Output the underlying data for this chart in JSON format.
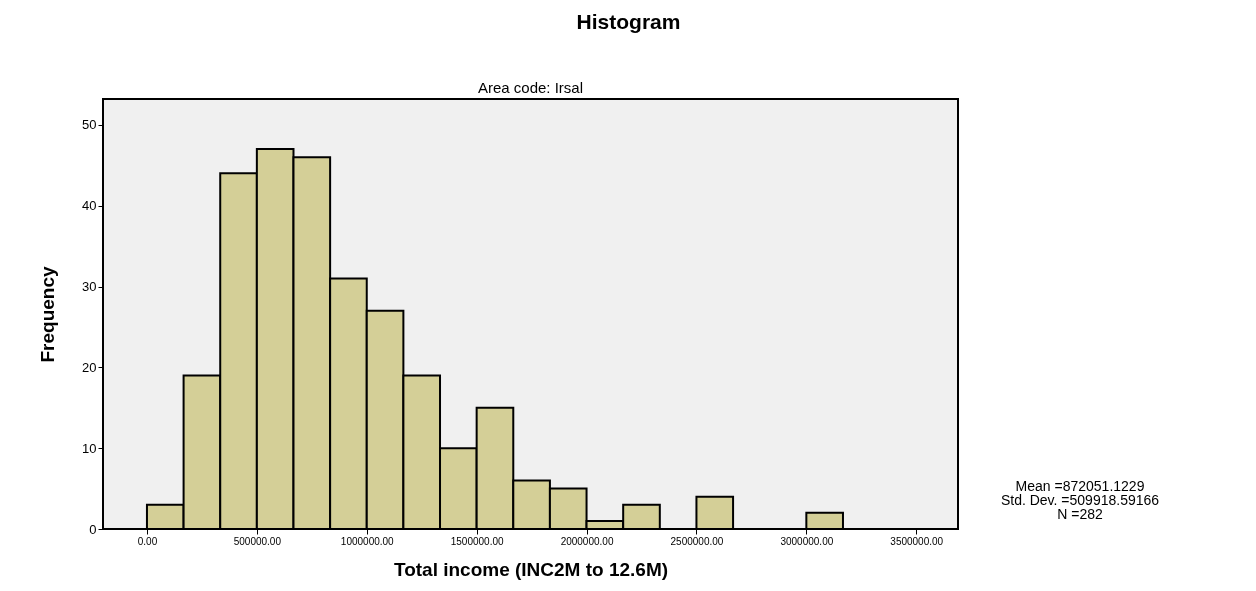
{
  "chart_data": {
    "type": "histogram",
    "title": "Histogram",
    "subtitle": "Area code: Irsal",
    "xlabel": "Total income (INC2M to 12.6M)",
    "ylabel": "Frequency",
    "bins": [
      0,
      166667,
      333333,
      500000,
      666667,
      833333,
      1000000,
      1166667,
      1333333,
      1500000,
      1666667,
      1833333,
      2000000,
      2166667,
      2333333,
      2500000,
      2666667,
      2833333,
      3000000,
      3166667
    ],
    "values": [
      3,
      19,
      44,
      47,
      46,
      31,
      27,
      19,
      10,
      15,
      6,
      5,
      1,
      3,
      0,
      4,
      0,
      0,
      2
    ],
    "color": "#d4cf97",
    "xlim": [
      -200000,
      3690000
    ],
    "ylim": [
      0,
      53.2
    ],
    "xticks": [
      {
        "value": 0,
        "label": "0.00"
      },
      {
        "value": 500000,
        "label": "500000.00"
      },
      {
        "value": 1000000,
        "label": "1000000.00"
      },
      {
        "value": 1500000,
        "label": "1500000.00"
      },
      {
        "value": 2000000,
        "label": "2000000.00"
      },
      {
        "value": 2500000,
        "label": "2500000.00"
      },
      {
        "value": 3000000,
        "label": "3000000.00"
      },
      {
        "value": 3500000,
        "label": "3500000.00"
      }
    ],
    "yticks": [
      0,
      10,
      20,
      30,
      40,
      50
    ],
    "grid": false,
    "annotations": [
      "Mean =872051.1229",
      "Std. Dev. =509918.59166",
      "N =282"
    ]
  }
}
